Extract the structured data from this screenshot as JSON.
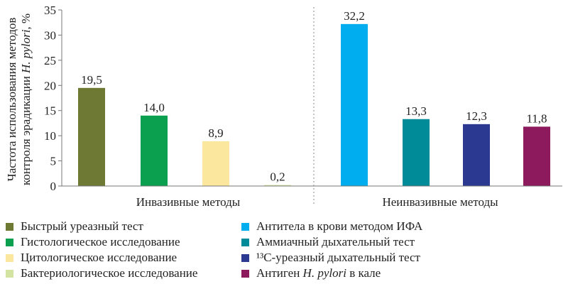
{
  "chart_data": {
    "type": "bar",
    "ylabel_line1": "Частота использования методов",
    "ylabel_line2": "контроля эрадикации H. pylori, %",
    "ylim": [
      0,
      35
    ],
    "yticks": [
      "0",
      "5",
      "10",
      "15",
      "20",
      "25",
      "30",
      "35"
    ],
    "groups": [
      "Инвазивные методы",
      "Неинвазивные методы"
    ],
    "series": [
      {
        "name": "Быстрый уреазный тест",
        "value": 19.5,
        "label": "19,5",
        "color": "#6e7a33",
        "group": 0
      },
      {
        "name": "Гистологическое исследование",
        "value": 14.0,
        "label": "14,0",
        "color": "#0aa04f",
        "group": 0
      },
      {
        "name": "Цитологическое исследование",
        "value": 8.9,
        "label": "8,9",
        "color": "#fbe79e",
        "group": 0
      },
      {
        "name": "Бактериологическое исследование",
        "value": 0.2,
        "label": "0,2",
        "color": "#d3e4a2",
        "group": 0
      },
      {
        "name": "Антитела в крови методом ИФА",
        "value": 32.2,
        "label": "32,2",
        "color": "#00aeef",
        "group": 1
      },
      {
        "name": "Аммиачный дыхательный тест",
        "value": 13.3,
        "label": "13,3",
        "color": "#008b98",
        "group": 1
      },
      {
        "name": "¹³C-уреазный дыхательный тест",
        "value": 12.3,
        "label": "12,3",
        "color": "#2b3990",
        "group": 1
      },
      {
        "name": "Антиген H. pylori в кале",
        "value": 11.8,
        "label": "11,8",
        "color": "#8e1a5e",
        "group": 1
      }
    ]
  }
}
